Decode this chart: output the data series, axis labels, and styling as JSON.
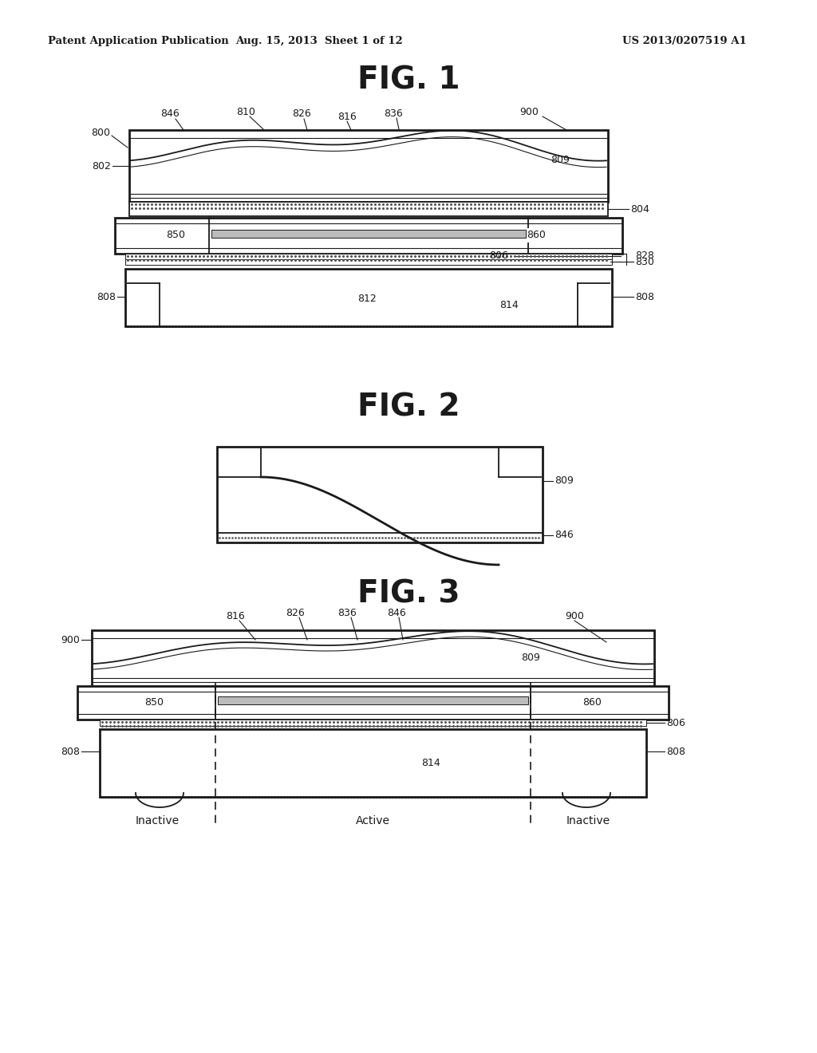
{
  "header_left": "Patent Application Publication",
  "header_mid": "Aug. 15, 2013  Sheet 1 of 12",
  "header_right": "US 2013/0207519 A1",
  "fig1_title": "FIG. 1",
  "fig2_title": "FIG. 2",
  "fig3_title": "FIG. 3",
  "background": "#ffffff",
  "line_color": "#1a1a1a"
}
